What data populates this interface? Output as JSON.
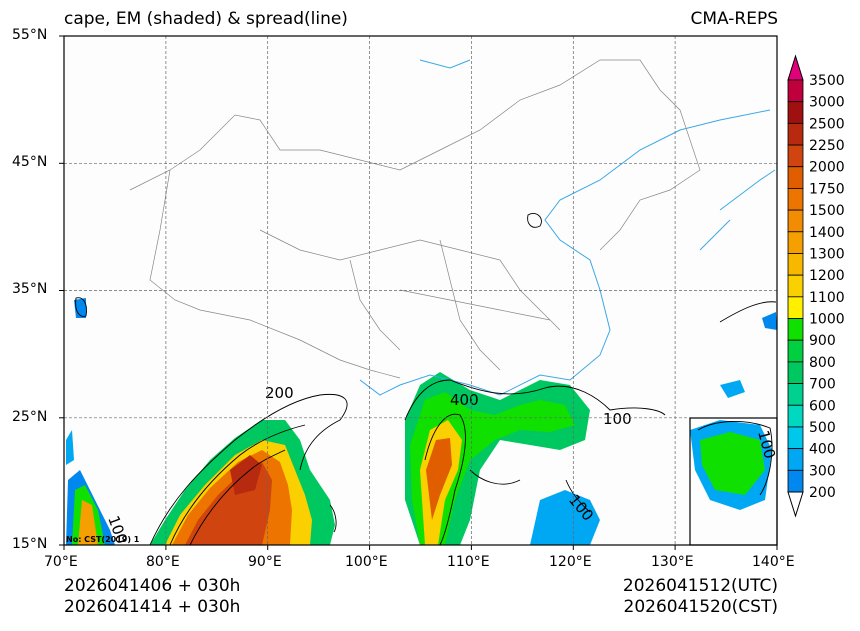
{
  "title": "cape, EM (shaded) & spread(line)",
  "model": "CMA-REPS",
  "lat_ticks": [
    "55°N",
    "45°N",
    "35°N",
    "25°N",
    "15°N"
  ],
  "lon_ticks": [
    "70°E",
    "80°E",
    "90°E",
    "100°E",
    "110°E",
    "120°E",
    "130°E",
    "140°E"
  ],
  "colorbar": {
    "labels": [
      "3500",
      "3000",
      "2500",
      "2250",
      "2000",
      "1750",
      "1500",
      "1400",
      "1300",
      "1200",
      "1100",
      "1000",
      "900",
      "800",
      "700",
      "600",
      "500",
      "400",
      "300",
      "200"
    ],
    "colors": [
      "#d4006e",
      "#c0003c",
      "#a01010",
      "#b82a10",
      "#d04410",
      "#e05e00",
      "#ee7400",
      "#f28c00",
      "#f5a000",
      "#f8b800",
      "#fbd000",
      "#fff000",
      "#10e000",
      "#00d040",
      "#00c860",
      "#00d090",
      "#00d8c0",
      "#00c8ec",
      "#00a8f4",
      "#0088ee",
      "#ffffff"
    ],
    "top_arrow": "#e0007a"
  },
  "contour_labels": [
    "200",
    "400",
    "100",
    "100",
    "100",
    "100"
  ],
  "stamp": "No: CST(2019) 1",
  "footer": {
    "init_utc": "2026041406  +  030h",
    "init_cst": "2026041414  +  030h",
    "valid_utc": "2026041512(UTC)",
    "valid_cst": "2026041520(CST)"
  }
}
